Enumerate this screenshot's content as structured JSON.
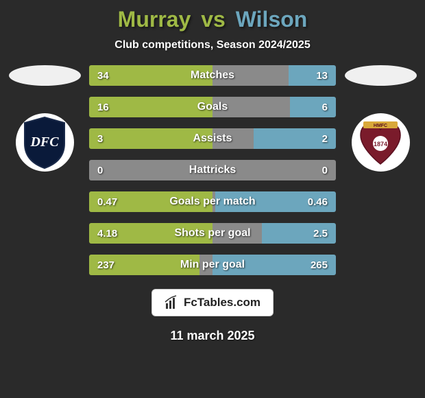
{
  "header": {
    "player1_name": "Murray",
    "vs_text": "vs",
    "player2_name": "Wilson",
    "player1_color": "#9fb945",
    "player2_color": "#6ca6bd",
    "subtitle": "Club competitions, Season 2024/2025"
  },
  "stats": [
    {
      "label": "Matches",
      "left_val": "34",
      "right_val": "13",
      "left_num": 34,
      "right_num": 13
    },
    {
      "label": "Goals",
      "left_val": "16",
      "right_val": "6",
      "left_num": 16,
      "right_num": 6
    },
    {
      "label": "Assists",
      "left_val": "3",
      "right_val": "2",
      "left_num": 3,
      "right_num": 2
    },
    {
      "label": "Hattricks",
      "left_val": "0",
      "right_val": "0",
      "left_num": 0,
      "right_num": 0
    },
    {
      "label": "Goals per match",
      "left_val": "0.47",
      "right_val": "0.46",
      "left_num": 0.47,
      "right_num": 0.46
    },
    {
      "label": "Shots per goal",
      "left_val": "4.18",
      "right_val": "2.5",
      "left_num": 4.18,
      "right_num": 2.5
    },
    {
      "label": "Min per goal",
      "left_val": "237",
      "right_val": "265",
      "left_num": 237,
      "right_num": 265
    }
  ],
  "bar_colors": {
    "left": "#9fb945",
    "right": "#6ca6bd",
    "empty": "#8a8a8a"
  },
  "bar_scaling": {
    "comment": "Each bar half is scaled so that the larger side fills ~50% of the row width; the other side is proportional.",
    "max_half_pct": 50
  },
  "clubs": {
    "left": {
      "name": "Dundee FC",
      "badge_bg": "#ffffff",
      "shield_fill": "#0a1a3a",
      "shield_border": "#1a2a4a",
      "text": "DFC",
      "text_color": "#ffffff"
    },
    "right": {
      "name": "Heart of Midlothian",
      "badge_bg": "#ffffff",
      "heart_fill": "#7a1b2b",
      "ribbon_fill": "#d9a83a",
      "text": "HMFC",
      "center_text": "1874",
      "text_color": "#ffffff"
    }
  },
  "footer": {
    "site_label": "FcTables.com",
    "date": "11 march 2025",
    "logo_icon_color": "#333333"
  }
}
